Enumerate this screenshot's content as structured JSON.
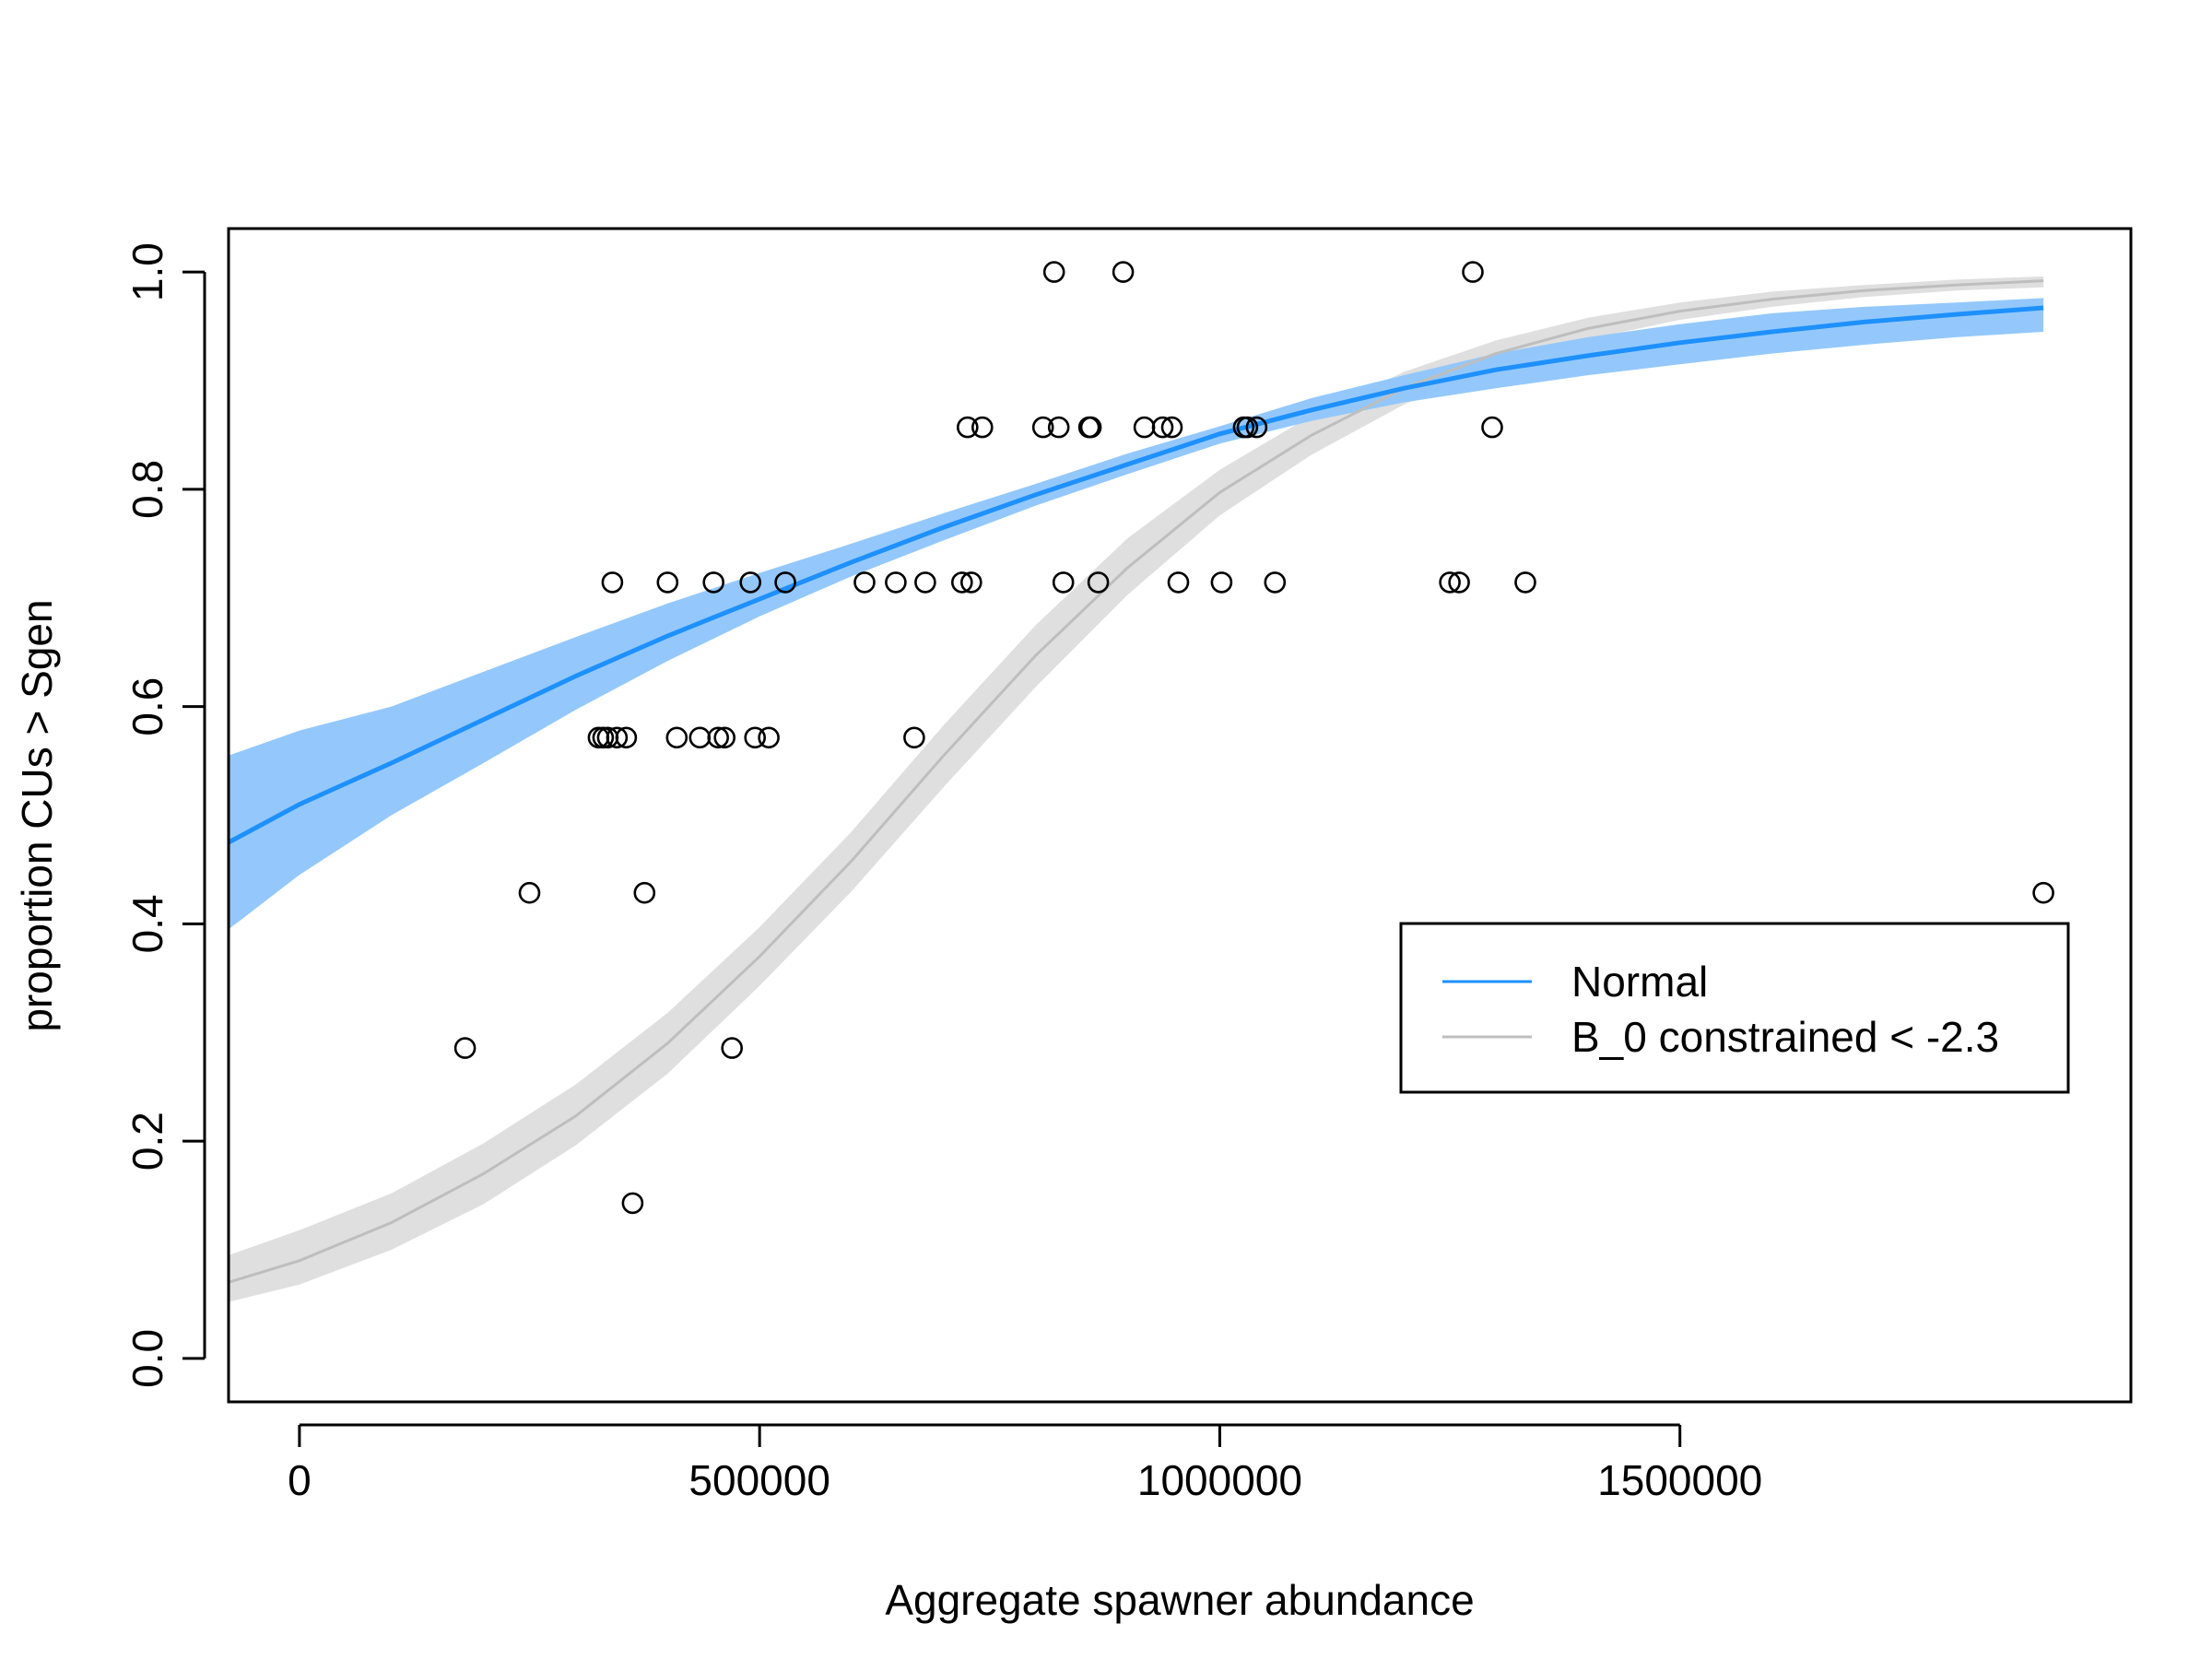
{
  "chart_data": {
    "type": "scatter",
    "title": "",
    "xlabel": "Aggregate spawner abundance",
    "ylabel": "proportion CUs > Sgen",
    "xlim": [
      -77000,
      1990000
    ],
    "ylim": [
      -0.04,
      1.04
    ],
    "x_ticks": [
      0,
      500000,
      1000000,
      1500000
    ],
    "x_tick_labels": [
      "0",
      "500000",
      "1000000",
      "1500000"
    ],
    "y_ticks": [
      0.0,
      0.2,
      0.4,
      0.6,
      0.8,
      1.0
    ],
    "y_tick_labels": [
      "0.0",
      "0.2",
      "0.4",
      "0.6",
      "0.8",
      "1.0"
    ],
    "grid": false,
    "legend_position": "right",
    "colors": {
      "normal": "#1e90ff",
      "normal_band": "#8ec5fc",
      "constrained": "#bebebe",
      "constrained_band": "#d9d9d9",
      "points": "#000000"
    },
    "points": {
      "x": [
        180000,
        250000,
        325000,
        330000,
        335000,
        340000,
        345000,
        355000,
        362000,
        375000,
        400000,
        410000,
        435000,
        450000,
        455000,
        462000,
        470000,
        490000,
        495000,
        510000,
        528000,
        614000,
        648000,
        668000,
        680000,
        720000,
        726000,
        730000,
        742000,
        808000,
        820000,
        825000,
        830000,
        858000,
        860000,
        868000,
        895000,
        918000,
        938000,
        948000,
        955000,
        1002000,
        1026000,
        1030000,
        1040000,
        1060000,
        1250000,
        1260000,
        1275000,
        1296000,
        1332000,
        1895000
      ],
      "y": [
        0.2857,
        0.4286,
        0.5714,
        0.5714,
        0.5714,
        0.7143,
        0.5714,
        0.5714,
        0.1429,
        0.4286,
        0.7143,
        0.5714,
        0.5714,
        0.7143,
        0.5714,
        0.5714,
        0.2857,
        0.7143,
        0.5714,
        0.5714,
        0.7143,
        0.7143,
        0.7143,
        0.5714,
        0.7143,
        0.7143,
        0.8571,
        0.7143,
        0.8571,
        0.8571,
        1.0,
        0.8571,
        0.7143,
        0.8571,
        0.8571,
        0.7143,
        1.0,
        0.8571,
        0.8571,
        0.8571,
        0.7143,
        0.7143,
        0.8571,
        0.8571,
        0.8571,
        0.7143,
        0.7143,
        0.7143,
        1.0,
        0.8571,
        0.7143,
        0.4286
      ]
    },
    "series": [
      {
        "name": "Normal",
        "x": [
          -77000,
          0,
          100000,
          200000,
          300000,
          400000,
          500000,
          600000,
          700000,
          800000,
          900000,
          1000000,
          1100000,
          1200000,
          1300000,
          1400000,
          1500000,
          1600000,
          1700000,
          1800000,
          1895000
        ],
        "y": [
          0.475,
          0.51,
          0.548,
          0.588,
          0.628,
          0.665,
          0.699,
          0.733,
          0.765,
          0.795,
          0.823,
          0.851,
          0.873,
          0.893,
          0.91,
          0.923,
          0.935,
          0.945,
          0.954,
          0.961,
          0.967
        ],
        "lower": [
          0.395,
          0.445,
          0.5,
          0.548,
          0.597,
          0.642,
          0.683,
          0.72,
          0.753,
          0.785,
          0.814,
          0.842,
          0.863,
          0.88,
          0.893,
          0.905,
          0.915,
          0.925,
          0.933,
          0.94,
          0.945
        ],
        "upper": [
          0.555,
          0.578,
          0.6,
          0.632,
          0.664,
          0.695,
          0.723,
          0.75,
          0.778,
          0.805,
          0.833,
          0.858,
          0.884,
          0.905,
          0.925,
          0.94,
          0.952,
          0.962,
          0.968,
          0.972,
          0.976
        ]
      },
      {
        "name": "B_0 constrained < -2.3",
        "x": [
          -77000,
          0,
          100000,
          200000,
          300000,
          400000,
          500000,
          600000,
          700000,
          800000,
          900000,
          1000000,
          1100000,
          1200000,
          1300000,
          1400000,
          1500000,
          1600000,
          1700000,
          1800000,
          1895000
        ],
        "y": [
          0.07,
          0.09,
          0.125,
          0.17,
          0.223,
          0.29,
          0.37,
          0.458,
          0.555,
          0.647,
          0.728,
          0.797,
          0.85,
          0.893,
          0.925,
          0.948,
          0.964,
          0.975,
          0.983,
          0.988,
          0.992
        ],
        "lower": [
          0.052,
          0.068,
          0.1,
          0.142,
          0.196,
          0.262,
          0.343,
          0.43,
          0.526,
          0.618,
          0.703,
          0.776,
          0.832,
          0.878,
          0.913,
          0.938,
          0.956,
          0.968,
          0.977,
          0.983,
          0.986
        ],
        "upper": [
          0.095,
          0.118,
          0.152,
          0.198,
          0.252,
          0.318,
          0.397,
          0.485,
          0.583,
          0.675,
          0.755,
          0.818,
          0.868,
          0.908,
          0.937,
          0.958,
          0.972,
          0.982,
          0.988,
          0.993,
          0.996
        ]
      }
    ]
  }
}
